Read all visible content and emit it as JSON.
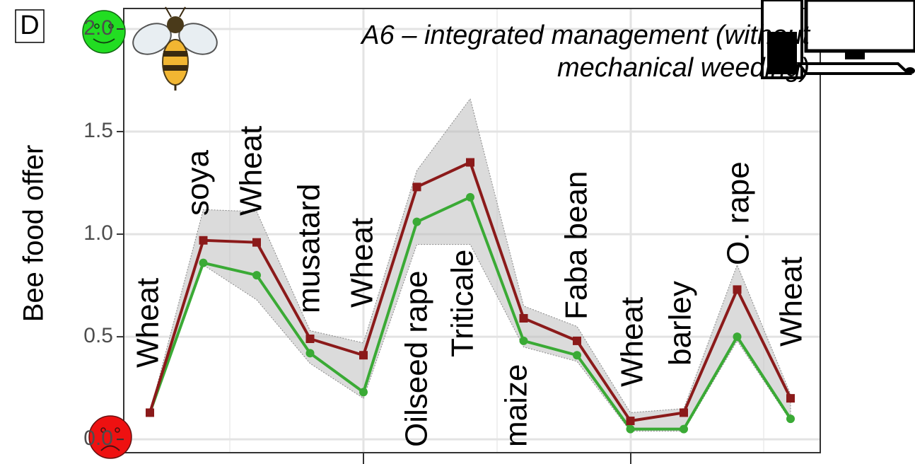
{
  "chart_data": {
    "type": "line",
    "panel_label": "D",
    "title_lines": [
      "A6 – integrated management (without",
      "mechanical weeding)"
    ],
    "ylabel": "Bee food offer",
    "categories": [
      "Wheat",
      "soya",
      "Wheat",
      "musatard",
      "Wheat",
      "Oilseed rape",
      "Triticale",
      "maize",
      "Faba bean",
      "Wheat",
      "barley",
      "O. rape",
      "Wheat"
    ],
    "series": [
      {
        "color": "#8b1a1a",
        "marker": "square",
        "values": [
          0.13,
          0.97,
          0.96,
          0.49,
          0.41,
          1.23,
          1.35,
          0.59,
          0.48,
          0.09,
          0.13,
          0.73,
          0.2
        ]
      },
      {
        "color": "#3aaa35",
        "marker": "circle",
        "values": [
          0.13,
          0.86,
          0.8,
          0.42,
          0.23,
          1.06,
          1.18,
          0.48,
          0.41,
          0.05,
          0.05,
          0.5,
          0.1
        ]
      }
    ],
    "band": {
      "color": "#bdbdbd",
      "upper": [
        0.13,
        1.12,
        1.11,
        0.53,
        0.47,
        1.31,
        1.66,
        0.65,
        0.55,
        0.13,
        0.15,
        0.85,
        0.22
      ],
      "lower": [
        0.12,
        0.85,
        0.68,
        0.37,
        0.2,
        0.95,
        0.95,
        0.45,
        0.38,
        0.04,
        0.04,
        0.48,
        0.09
      ]
    },
    "ylim": [
      -0.065,
      2.1
    ],
    "yticks": [
      {
        "value": 0,
        "label": "0.0"
      },
      0.5,
      {
        "value": 1,
        "label": "1.0"
      },
      1.5,
      {
        "value": 2,
        "label": "2.0"
      }
    ],
    "grid": true
  }
}
